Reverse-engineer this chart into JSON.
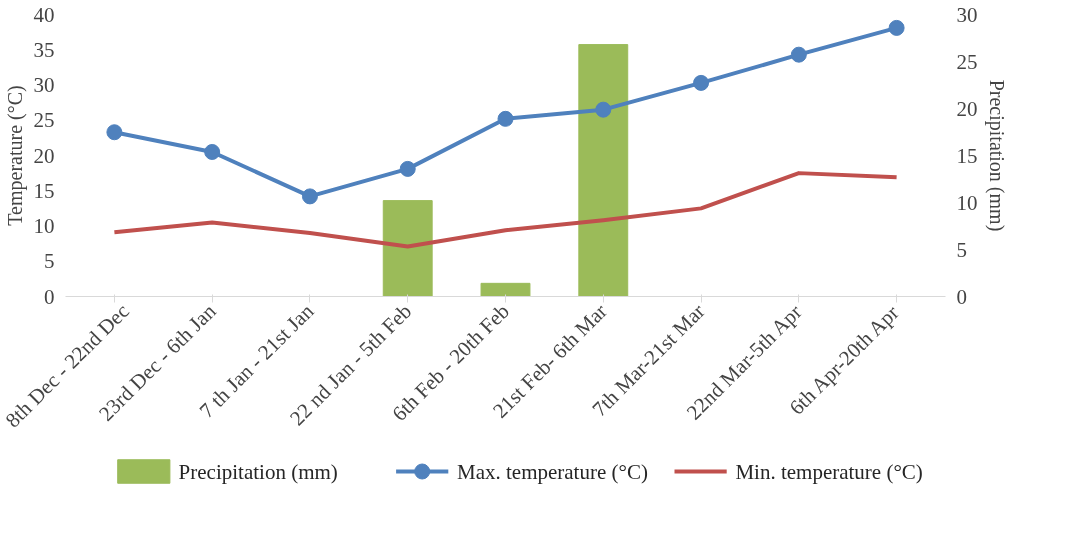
{
  "chart_data": {
    "type": "line",
    "ylabel": "Temperature (°C)",
    "y2label": "Precipitation (mm)",
    "categories": [
      "8th Dec - 22nd Dec",
      "23rd Dec - 6th Jan",
      "7 th Jan - 21st Jan",
      "22 nd Jan - 5th Feb",
      "6th Feb - 20th Feb",
      "21st Feb- 6th Mar",
      "7th Mar-21st Mar",
      "22nd Mar-5th Apr",
      "6th Apr-20th Apr"
    ],
    "series": [
      {
        "name": "Precipitation (mm)",
        "type": "bar",
        "axis": "y2",
        "color": "#9bbb59",
        "values": [
          0,
          0,
          0,
          10.2,
          1.4,
          26.8,
          0,
          0,
          0
        ]
      },
      {
        "name": "Max. temperature (°C)",
        "type": "line",
        "color": "#4f81bd",
        "marker": "circle",
        "values": [
          23.3,
          20.5,
          14.2,
          18.1,
          25.2,
          26.5,
          30.3,
          34.3,
          38.1
        ]
      },
      {
        "name": "Min. temperature (°C)",
        "type": "line",
        "color": "#c0504d",
        "marker": "none",
        "values": [
          9.1,
          10.5,
          9.0,
          7.1,
          9.4,
          10.8,
          12.5,
          17.5,
          16.9
        ]
      }
    ],
    "ylim": [
      0,
      40
    ],
    "yticks": [
      0,
      5,
      10,
      15,
      20,
      25,
      30,
      35,
      40
    ],
    "y2lim": [
      0,
      30
    ],
    "y2ticks": [
      0,
      5,
      10,
      15,
      20,
      25,
      30
    ],
    "grid": false,
    "legend": "bottom",
    "line_style": "solid"
  }
}
